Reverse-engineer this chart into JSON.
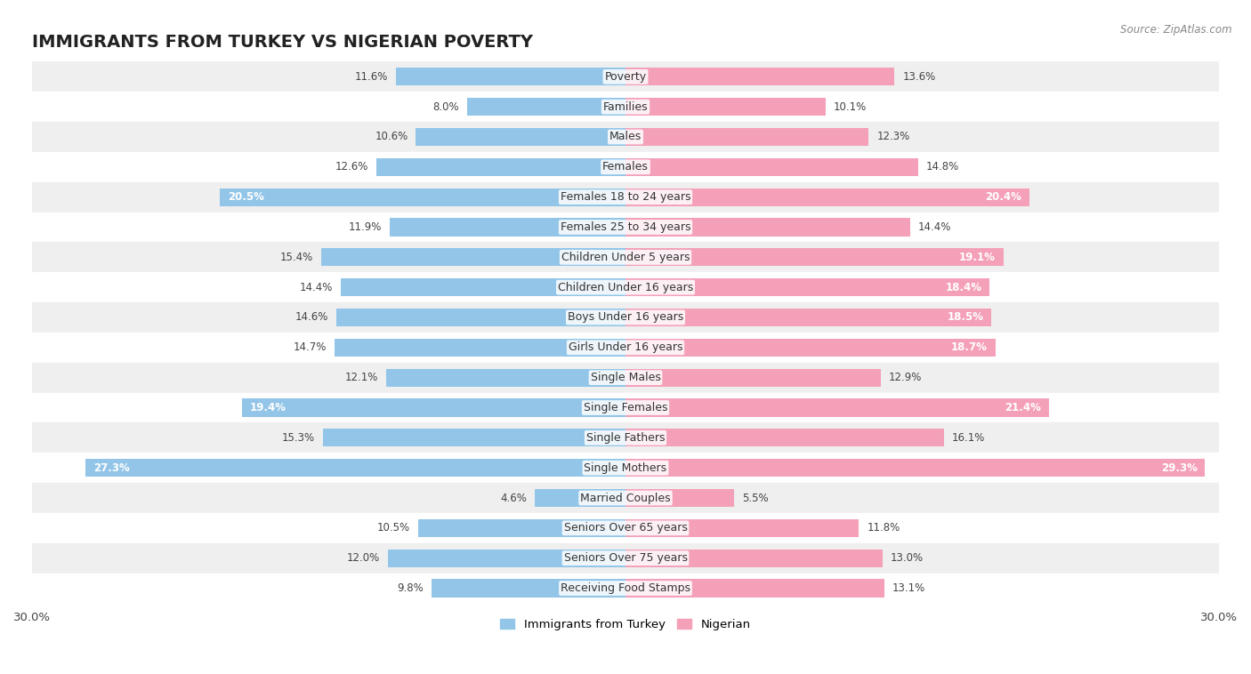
{
  "title": "IMMIGRANTS FROM TURKEY VS NIGERIAN POVERTY",
  "source": "Source: ZipAtlas.com",
  "categories": [
    "Poverty",
    "Families",
    "Males",
    "Females",
    "Females 18 to 24 years",
    "Females 25 to 34 years",
    "Children Under 5 years",
    "Children Under 16 years",
    "Boys Under 16 years",
    "Girls Under 16 years",
    "Single Males",
    "Single Females",
    "Single Fathers",
    "Single Mothers",
    "Married Couples",
    "Seniors Over 65 years",
    "Seniors Over 75 years",
    "Receiving Food Stamps"
  ],
  "turkey_values": [
    11.6,
    8.0,
    10.6,
    12.6,
    20.5,
    11.9,
    15.4,
    14.4,
    14.6,
    14.7,
    12.1,
    19.4,
    15.3,
    27.3,
    4.6,
    10.5,
    12.0,
    9.8
  ],
  "nigerian_values": [
    13.6,
    10.1,
    12.3,
    14.8,
    20.4,
    14.4,
    19.1,
    18.4,
    18.5,
    18.7,
    12.9,
    21.4,
    16.1,
    29.3,
    5.5,
    11.8,
    13.0,
    13.1
  ],
  "turkey_color": "#92c5e8",
  "nigerian_color": "#f4a0b8",
  "turkey_label": "Immigrants from Turkey",
  "nigerian_label": "Nigerian",
  "axis_limit": 30.0,
  "background_row_colors": [
    "#efefef",
    "#ffffff"
  ],
  "title_fontsize": 14,
  "label_fontsize": 9,
  "value_fontsize": 8.5,
  "bar_height": 0.6,
  "turkey_threshold": 18.0,
  "nigerian_threshold": 18.0
}
